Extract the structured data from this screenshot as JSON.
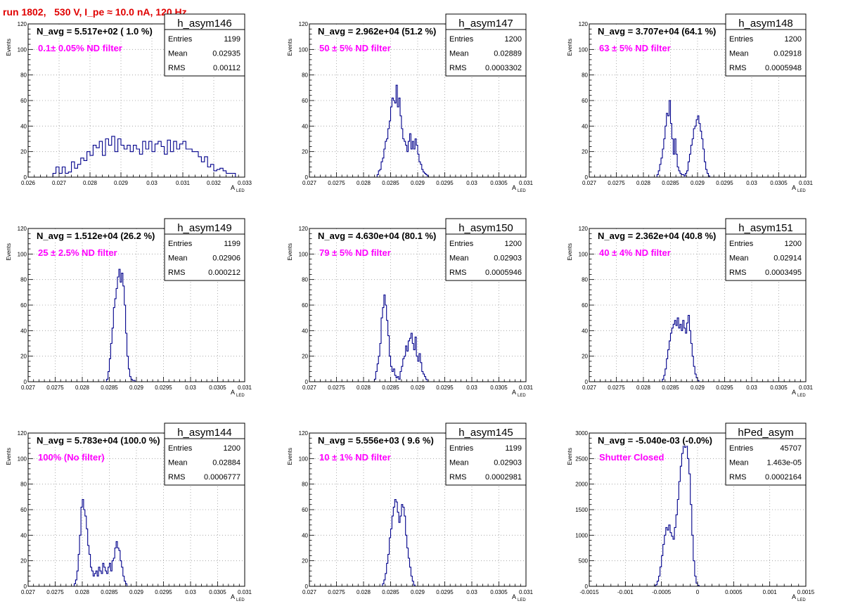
{
  "page": {
    "title": "run 1802,   530 V, I_pe ≈ 10.0 nA, 120 Hz"
  },
  "colors": {
    "title": "#e00000",
    "histogram": "#00008b",
    "annotation": "#ff00ff",
    "grid": "#9a9a9a"
  },
  "chart_data": [
    {
      "type": "histogram",
      "name": "h_asym146",
      "ylabel": "Events",
      "xlabel": "A",
      "xlabel_sub": "LED",
      "xlim": [
        0.026,
        0.033
      ],
      "ylim": [
        0,
        120
      ],
      "xticks": [
        "0.026",
        "0.027",
        "0.028",
        "0.029",
        "0.03",
        "0.031",
        "0.032",
        "0.033"
      ],
      "yticks": [
        "0",
        "20",
        "40",
        "60",
        "80",
        "100",
        "120"
      ],
      "navg": "N_avg = 5.517e+02 ( 1.0 %)",
      "filter": "0.1± 0.05% ND filter",
      "stats": {
        "entries": "1199",
        "mean": "0.02935",
        "rms": "0.00112"
      },
      "stat_labels": [
        "Entries",
        "Mean",
        "RMS"
      ],
      "bins": {
        "x_start": 0.0268,
        "width": 0.0001,
        "counts": [
          3,
          8,
          3,
          8,
          3,
          4,
          12,
          7,
          10,
          15,
          13,
          20,
          17,
          25,
          23,
          28,
          17,
          30,
          25,
          32,
          20,
          30,
          25,
          22,
          25,
          20,
          25,
          22,
          18,
          28,
          22,
          28,
          20,
          26,
          28,
          24,
          18,
          29,
          20,
          28,
          22,
          26,
          28,
          22,
          22,
          20,
          20,
          16,
          12,
          16,
          8,
          10,
          5,
          6,
          7,
          5,
          3,
          3,
          3
        ]
      }
    },
    {
      "type": "histogram",
      "name": "h_asym147",
      "ylabel": "Events",
      "xlabel": "A",
      "xlabel_sub": "LED",
      "xlim": [
        0.027,
        0.031
      ],
      "ylim": [
        0,
        120
      ],
      "xticks": [
        "0.027",
        "0.0275",
        "0.028",
        "0.0285",
        "0.029",
        "0.0295",
        "0.03",
        "0.0305",
        "0.031"
      ],
      "yticks": [
        "0",
        "20",
        "40",
        "60",
        "80",
        "100",
        "120"
      ],
      "navg": "N_avg = 2.962e+04 (51.2 %)",
      "filter": "50 ± 5% ND filter",
      "stats": {
        "entries": "1200",
        "mean": "0.02889",
        "rms": "0.0003302"
      },
      "stat_labels": [
        "Entries",
        "Mean",
        "RMS"
      ],
      "bins": {
        "x_start": 0.02825,
        "width": 2.5e-05,
        "counts": [
          2,
          5,
          6,
          12,
          15,
          22,
          28,
          30,
          38,
          44,
          55,
          62,
          60,
          58,
          72,
          55,
          62,
          48,
          38,
          30,
          28,
          25,
          20,
          28,
          34,
          22,
          28,
          22,
          30,
          25,
          18,
          12,
          10,
          6,
          4,
          3,
          2,
          1
        ]
      }
    },
    {
      "type": "histogram",
      "name": "h_asym148",
      "ylabel": "Events",
      "xlabel": "A",
      "xlabel_sub": "LED",
      "xlim": [
        0.027,
        0.031
      ],
      "ylim": [
        0,
        120
      ],
      "xticks": [
        "0.027",
        "0.0275",
        "0.028",
        "0.0285",
        "0.029",
        "0.0295",
        "0.03",
        "0.0305",
        "0.031"
      ],
      "yticks": [
        "0",
        "20",
        "40",
        "60",
        "80",
        "100",
        "120"
      ],
      "navg": "N_avg = 3.707e+04 (64.1 %)",
      "filter": "63 ± 5% ND filter",
      "stats": {
        "entries": "1200",
        "mean": "0.02918",
        "rms": "0.0005948"
      },
      "stat_labels": [
        "Entries",
        "Mean",
        "RMS"
      ],
      "bins": {
        "x_start": 0.02825,
        "width": 2.5e-05,
        "counts": [
          2,
          5,
          10,
          15,
          22,
          30,
          40,
          50,
          48,
          60,
          42,
          30,
          18,
          30,
          18,
          8,
          5,
          3,
          2,
          2,
          1,
          3,
          5,
          12,
          18,
          25,
          30,
          38,
          40,
          45,
          48,
          42,
          36,
          30,
          22,
          12,
          6,
          3,
          1
        ]
      }
    },
    {
      "type": "histogram",
      "name": "h_asym149",
      "ylabel": "Events",
      "xlabel": "A",
      "xlabel_sub": "LED",
      "xlim": [
        0.027,
        0.031
      ],
      "ylim": [
        0,
        120
      ],
      "xticks": [
        "0.027",
        "0.0275",
        "0.028",
        "0.0285",
        "0.029",
        "0.0295",
        "0.03",
        "0.0305",
        "0.031"
      ],
      "yticks": [
        "0",
        "20",
        "40",
        "60",
        "80",
        "100",
        "120"
      ],
      "navg": "N_avg = 1.512e+04 (26.2 %)",
      "filter": "25 ± 2.5% ND filter",
      "stats": {
        "entries": "1199",
        "mean": "0.02906",
        "rms": "0.000212"
      },
      "stat_labels": [
        "Entries",
        "Mean",
        "RMS"
      ],
      "bins": {
        "x_start": 0.02845,
        "width": 2.5e-05,
        "counts": [
          2,
          8,
          18,
          30,
          42,
          58,
          65,
          73,
          82,
          88,
          78,
          85,
          75,
          60,
          38,
          20,
          10,
          4,
          2,
          1,
          1
        ]
      }
    },
    {
      "type": "histogram",
      "name": "h_asym150",
      "ylabel": "Events",
      "xlabel": "A",
      "xlabel_sub": "LED",
      "xlim": [
        0.027,
        0.031
      ],
      "ylim": [
        0,
        120
      ],
      "xticks": [
        "0.027",
        "0.0275",
        "0.028",
        "0.0285",
        "0.029",
        "0.0295",
        "0.03",
        "0.0305",
        "0.031"
      ],
      "yticks": [
        "0",
        "20",
        "40",
        "60",
        "80",
        "100",
        "120"
      ],
      "navg": "N_avg = 4.630e+04 (80.1 %)",
      "filter": "79 ± 5% ND filter",
      "stats": {
        "entries": "1200",
        "mean": "0.02903",
        "rms": "0.0005946"
      },
      "stat_labels": [
        "Entries",
        "Mean",
        "RMS"
      ],
      "bins": {
        "x_start": 0.0282,
        "width": 2.5e-05,
        "counts": [
          2,
          8,
          14,
          20,
          30,
          50,
          58,
          68,
          60,
          48,
          36,
          20,
          12,
          8,
          10,
          5,
          3,
          4,
          2,
          8,
          12,
          18,
          20,
          28,
          24,
          32,
          34,
          38,
          30,
          25,
          35,
          20,
          16,
          22,
          15,
          8,
          6,
          4,
          2
        ]
      }
    },
    {
      "type": "histogram",
      "name": "h_asym151",
      "ylabel": "Events",
      "xlabel": "A",
      "xlabel_sub": "LED",
      "xlim": [
        0.027,
        0.031
      ],
      "ylim": [
        0,
        120
      ],
      "xticks": [
        "0.027",
        "0.0275",
        "0.028",
        "0.0285",
        "0.029",
        "0.0295",
        "0.03",
        "0.0305",
        "0.031"
      ],
      "yticks": [
        "0",
        "20",
        "40",
        "60",
        "80",
        "100",
        "120"
      ],
      "navg": "N_avg = 2.362e+04 (40.8 %)",
      "filter": "40 ± 4% ND filter",
      "stats": {
        "entries": "1200",
        "mean": "0.02914",
        "rms": "0.0003495"
      },
      "stat_labels": [
        "Entries",
        "Mean",
        "RMS"
      ],
      "bins": {
        "x_start": 0.02835,
        "width": 2.5e-05,
        "counts": [
          2,
          5,
          10,
          18,
          25,
          32,
          38,
          42,
          45,
          48,
          44,
          50,
          42,
          45,
          40,
          48,
          42,
          38,
          46,
          52,
          40,
          30,
          20,
          12,
          6,
          3,
          1
        ]
      }
    },
    {
      "type": "histogram",
      "name": "h_asym144",
      "ylabel": "Events",
      "xlabel": "A",
      "xlabel_sub": "LED",
      "xlim": [
        0.027,
        0.031
      ],
      "ylim": [
        0,
        120
      ],
      "xticks": [
        "0.027",
        "0.0275",
        "0.028",
        "0.0285",
        "0.029",
        "0.0295",
        "0.03",
        "0.0305",
        "0.031"
      ],
      "yticks": [
        "0",
        "20",
        "40",
        "60",
        "80",
        "100",
        "120"
      ],
      "navg": "N_avg = 5.783e+04 (100.0 %)",
      "filter": "100% (No filter)",
      "stats": {
        "entries": "1200",
        "mean": "0.02884",
        "rms": "0.0006777"
      },
      "stat_labels": [
        "Entries",
        "Mean",
        "RMS"
      ],
      "bins": {
        "x_start": 0.02785,
        "width": 2.5e-05,
        "counts": [
          2,
          5,
          12,
          25,
          40,
          62,
          68,
          60,
          55,
          45,
          32,
          25,
          15,
          12,
          8,
          10,
          12,
          8,
          15,
          12,
          10,
          18,
          15,
          12,
          10,
          15,
          18,
          12,
          20,
          22,
          30,
          35,
          30,
          28,
          20,
          15,
          8,
          4,
          2
        ]
      }
    },
    {
      "type": "histogram",
      "name": "h_asym145",
      "ylabel": "Events",
      "xlabel": "A",
      "xlabel_sub": "LED",
      "xlim": [
        0.027,
        0.031
      ],
      "ylim": [
        0,
        120
      ],
      "xticks": [
        "0.027",
        "0.0275",
        "0.028",
        "0.0285",
        "0.029",
        "0.0295",
        "0.03",
        "0.0305",
        "0.031"
      ],
      "yticks": [
        "0",
        "20",
        "40",
        "60",
        "80",
        "100",
        "120"
      ],
      "navg": "N_avg = 5.556e+03 ( 9.6 %)",
      "filter": "10 ± 1% ND filter",
      "stats": {
        "entries": "1199",
        "mean": "0.02903",
        "rms": "0.0002981"
      },
      "stat_labels": [
        "Entries",
        "Mean",
        "RMS"
      ],
      "bins": {
        "x_start": 0.02835,
        "width": 2.5e-05,
        "counts": [
          2,
          5,
          10,
          18,
          25,
          38,
          45,
          55,
          62,
          68,
          66,
          58,
          50,
          55,
          64,
          62,
          55,
          40,
          30,
          22,
          15,
          8,
          4,
          1
        ]
      }
    },
    {
      "type": "histogram",
      "name": "hPed_asym",
      "ylabel": "Events",
      "xlabel": "A",
      "xlabel_sub": "LED",
      "xlim": [
        -0.0015,
        0.0015
      ],
      "ylim": [
        0,
        3000
      ],
      "xticks": [
        "-0.0015",
        "-0.001",
        "-0.0005",
        "0",
        "0.0005",
        "0.001",
        "0.0015"
      ],
      "yticks": [
        "0",
        "500",
        "1000",
        "1500",
        "2000",
        "2500",
        "3000"
      ],
      "navg": "N_avg = -5.040e-03 (-0.0%)",
      "filter": "Shutter Closed",
      "stats": {
        "entries": "45707",
        "mean": "1.463e-05",
        "rms": "0.0002164"
      },
      "stat_labels": [
        "Entries",
        "Mean",
        "RMS"
      ],
      "bins": {
        "x_start": -0.0006,
        "width": 2e-05,
        "counts": [
          10,
          30,
          100,
          200,
          380,
          600,
          820,
          1000,
          1150,
          1100,
          1200,
          1050,
          980,
          920,
          1150,
          1400,
          1700,
          2050,
          2350,
          2600,
          2780,
          2720,
          2800,
          2500,
          2200,
          1600,
          1000,
          500,
          200,
          60,
          20
        ]
      }
    }
  ]
}
